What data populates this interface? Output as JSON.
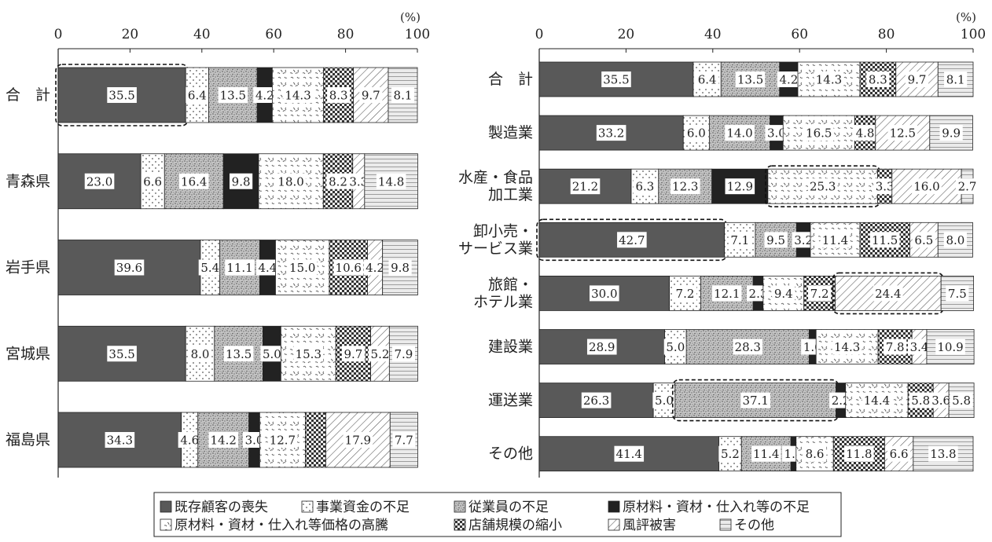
{
  "chart_data": [
    {
      "type": "bar",
      "orientation": "horizontal",
      "stacked": true,
      "unit": "(%)",
      "xlim": [
        0,
        100
      ],
      "xticks": [
        "0",
        "20",
        "40",
        "60",
        "80",
        "100"
      ],
      "categories": [
        "合　計",
        "青森県",
        "岩手県",
        "宮城県",
        "福島県"
      ],
      "series": [
        {
          "name": "既存顧客の喪失",
          "values": [
            35.5,
            23.0,
            39.6,
            35.5,
            34.3
          ]
        },
        {
          "name": "事業資金の不足",
          "values": [
            6.4,
            6.6,
            5.4,
            8.0,
            4.6
          ]
        },
        {
          "name": "従業員の不足",
          "values": [
            13.5,
            16.4,
            11.1,
            13.5,
            14.2
          ]
        },
        {
          "name": "原材料・資材・仕入れ等の不足",
          "values": [
            4.2,
            9.8,
            4.4,
            5.0,
            3.0
          ]
        },
        {
          "name": "原材料・資材・仕入れ等価格の高騰",
          "values": [
            14.3,
            18.0,
            15.0,
            15.3,
            12.7
          ]
        },
        {
          "name": "店舗規模の縮小",
          "values": [
            8.3,
            8.2,
            10.6,
            9.7,
            5.7
          ]
        },
        {
          "name": "風評被害",
          "values": [
            9.7,
            3.3,
            4.2,
            5.2,
            17.9
          ]
        },
        {
          "name": "その他",
          "values": [
            8.1,
            14.8,
            9.8,
            7.9,
            7.7
          ]
        }
      ],
      "labels": [
        [
          "35.5",
          "6.4",
          "13.5",
          "4.2",
          "14.3",
          "8.3",
          "9.7",
          "8.1"
        ],
        [
          "23.0",
          "6.6",
          "16.4",
          "9.8",
          "18.0",
          "8.2",
          "3.3",
          "14.8"
        ],
        [
          "39.6",
          "5.4",
          "11.1",
          "4.4",
          "15.0",
          "10.6",
          "4.2",
          "9.8"
        ],
        [
          "35.5",
          "8.0",
          "13.5",
          "5.0",
          "15.3",
          "9.7",
          "5.2",
          "7.9"
        ],
        [
          "34.3",
          "4.6",
          "14.2",
          "3.0",
          "12.7",
          "",
          "17.9",
          "7.7"
        ]
      ],
      "highlights": [
        [
          0,
          0
        ]
      ]
    },
    {
      "type": "bar",
      "orientation": "horizontal",
      "stacked": true,
      "unit": "(%)",
      "xlim": [
        0,
        100
      ],
      "xticks": [
        "0",
        "20",
        "40",
        "60",
        "80",
        "100"
      ],
      "categories": [
        [
          "合　計"
        ],
        [
          "製造業"
        ],
        [
          "水産・食品",
          "加工業"
        ],
        [
          "卸小売・",
          "サービス業"
        ],
        [
          "旅館・",
          "ホテル業"
        ],
        [
          "建設業"
        ],
        [
          "運送業"
        ],
        [
          "その他"
        ]
      ],
      "series": [
        {
          "name": "既存顧客の喪失",
          "values": [
            35.5,
            33.2,
            21.2,
            42.7,
            30.0,
            28.9,
            26.3,
            41.4
          ]
        },
        {
          "name": "事業資金の不足",
          "values": [
            6.4,
            6.0,
            6.3,
            7.1,
            7.2,
            5.0,
            5.0,
            5.2
          ]
        },
        {
          "name": "従業員の不足",
          "values": [
            13.5,
            14.0,
            12.3,
            9.5,
            12.1,
            28.3,
            37.1,
            11.4
          ]
        },
        {
          "name": "原材料・資材・仕入れ等の不足",
          "values": [
            4.2,
            3.0,
            12.9,
            3.2,
            2.3,
            1.6,
            2.2,
            1.2
          ]
        },
        {
          "name": "原材料・資材・仕入れ等価格の高騰",
          "values": [
            14.3,
            16.5,
            25.3,
            11.4,
            9.4,
            14.3,
            14.4,
            8.6
          ]
        },
        {
          "name": "店舗規模の縮小",
          "values": [
            8.3,
            4.8,
            3.3,
            11.5,
            7.2,
            7.8,
            5.8,
            11.8
          ]
        },
        {
          "name": "風評被害",
          "values": [
            9.7,
            12.5,
            16.0,
            6.5,
            24.4,
            3.4,
            3.6,
            6.6
          ]
        },
        {
          "name": "その他",
          "values": [
            8.1,
            9.9,
            2.7,
            8.0,
            7.5,
            10.9,
            5.8,
            13.8
          ]
        }
      ],
      "labels": [
        [
          "35.5",
          "6.4",
          "13.5",
          "4.2",
          "14.3",
          "8.3",
          "9.7",
          "8.1"
        ],
        [
          "33.2",
          "6.0",
          "14.0",
          "3.0",
          "16.5",
          "4.8",
          "12.5",
          "9.9"
        ],
        [
          "21.2",
          "6.3",
          "12.3",
          "12.9",
          "25.3",
          "3.3",
          "16.0",
          "2.7"
        ],
        [
          "42.7",
          "7.1",
          "9.5",
          "3.2",
          "11.4",
          "11.5",
          "6.5",
          "8.0"
        ],
        [
          "30.0",
          "7.2",
          "12.1",
          "2.3",
          "9.4",
          "7.2",
          "24.4",
          "7.5"
        ],
        [
          "28.9",
          "5.0",
          "28.3",
          "1.6",
          "14.3",
          "7.8",
          "3.4",
          "10.9"
        ],
        [
          "26.3",
          "5.0",
          "37.1",
          "2.2",
          "14.4",
          "5.8",
          "3.6",
          "5.8"
        ],
        [
          "41.4",
          "5.2",
          "11.4",
          "1.2",
          "8.6",
          "11.8",
          "6.6",
          "13.8"
        ]
      ],
      "highlights": [
        [
          2,
          4
        ],
        [
          3,
          0
        ],
        [
          4,
          6
        ],
        [
          6,
          2
        ]
      ]
    }
  ],
  "legend": [
    [
      "既存顧客の喪失",
      "事業資金の不足",
      "従業員の不足",
      "原材料・資材・仕入れ等の不足"
    ],
    [
      "原材料・資材・仕入れ等価格の高騰",
      "店舗規模の縮小",
      "風評被害",
      "その他"
    ]
  ]
}
